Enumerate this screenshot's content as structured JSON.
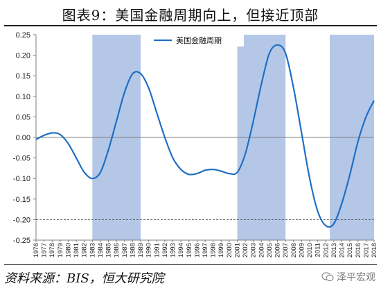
{
  "figure": {
    "title": "图表9：美国金融周期向上，但接近顶部",
    "source": "资料来源：BIS，恒大研究院",
    "watermark": "泽平宏观"
  },
  "colors": {
    "line": "#1f6fc4",
    "shade": "#b4c7e7",
    "axis": "#7f7f7f"
  },
  "chart_data": {
    "type": "line",
    "title": "",
    "xlabel": "",
    "ylabel": "",
    "ylim": [
      -0.25,
      0.25
    ],
    "yticks": [
      "0.25",
      "0.20",
      "0.15",
      "0.10",
      "0.05",
      "0.00",
      "-0.05",
      "-0.10",
      "-0.15",
      "-0.20",
      "-0.25"
    ],
    "ytick_values": [
      0.25,
      0.2,
      0.15,
      0.1,
      0.05,
      0.0,
      -0.05,
      -0.1,
      -0.15,
      -0.2,
      -0.25
    ],
    "xticks": [
      "1976",
      "1977",
      "1978",
      "1979",
      "1980",
      "1981",
      "1982",
      "1983",
      "1984",
      "1985",
      "1986",
      "1987",
      "1988",
      "1989",
      "1990",
      "1991",
      "1992",
      "1993",
      "1994",
      "1995",
      "1996",
      "1997",
      "1998",
      "1999",
      "2000",
      "2001",
      "2002",
      "2003",
      "2004",
      "2005",
      "2006",
      "2007",
      "2008",
      "2009",
      "2010",
      "2011",
      "2012",
      "2013",
      "2014",
      "2015",
      "2016",
      "2017",
      "2018"
    ],
    "xlim": [
      1976,
      2018
    ],
    "legend": {
      "position": "top",
      "entries": [
        "美国金融周期"
      ]
    },
    "shaded_periods": [
      {
        "start": 1983,
        "end": 1989
      },
      {
        "start": 2001,
        "end": 2007
      },
      {
        "start": 2012.5,
        "end": 2018
      }
    ],
    "series": [
      {
        "name": "美国金融周期",
        "x": [
          1976,
          1977,
          1978,
          1979,
          1980,
          1981,
          1982,
          1983,
          1984,
          1985,
          1986,
          1987,
          1988,
          1989,
          1990,
          1991,
          1992,
          1993,
          1994,
          1995,
          1996,
          1997,
          1998,
          1999,
          2000,
          2001,
          2002,
          2003,
          2004,
          2005,
          2006,
          2007,
          2008,
          2009,
          2010,
          2011,
          2012,
          2013,
          2014,
          2015,
          2016,
          2017,
          2018
        ],
        "values": [
          -0.005,
          0.005,
          0.011,
          0.007,
          -0.015,
          -0.05,
          -0.085,
          -0.1,
          -0.085,
          -0.03,
          0.04,
          0.11,
          0.155,
          0.155,
          0.12,
          0.06,
          0.0,
          -0.05,
          -0.078,
          -0.09,
          -0.088,
          -0.08,
          -0.078,
          -0.082,
          -0.088,
          -0.085,
          -0.04,
          0.04,
          0.13,
          0.205,
          0.225,
          0.205,
          0.12,
          0.01,
          -0.1,
          -0.18,
          -0.215,
          -0.21,
          -0.16,
          -0.09,
          -0.01,
          0.05,
          0.09
        ]
      }
    ]
  }
}
